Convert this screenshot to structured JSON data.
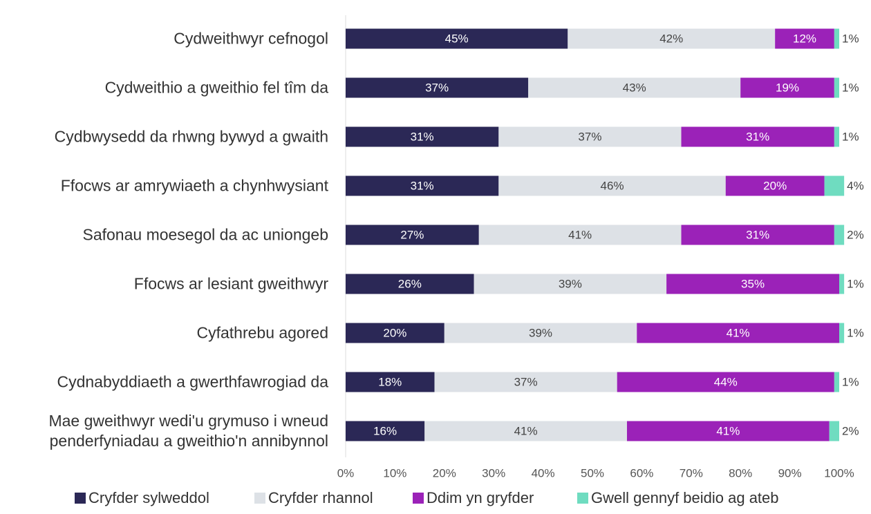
{
  "chart_data": {
    "type": "stacked-bar-horizontal",
    "categories": [
      "Cydweithwyr cefnogol",
      "Cydweithio a gweithio fel tîm da",
      "Cydbwysedd da rhwng bywyd a gwaith",
      "Ffocws ar amrywiaeth a chynhwysiant",
      "Safonau moesegol da ac uniongeb",
      "Ffocws ar lesiant gweithwyr",
      "Cyfathrebu agored",
      "Cydnabyddiaeth a gwerthfawrogiad da",
      "Mae gweithwyr wedi'u grymuso i wneud\npenderfyniadau a gweithio'n annibynnol"
    ],
    "series": [
      {
        "name": "Cryfder sylweddol",
        "color": "#2b2856",
        "values": [
          45,
          37,
          31,
          31,
          27,
          26,
          20,
          18,
          16
        ],
        "value_labels": [
          "45%",
          "37%",
          "31%",
          "31%",
          "27%",
          "26%",
          "20%",
          "18%",
          "16%"
        ]
      },
      {
        "name": "Cryfder rhannol",
        "color": "#dde1e6",
        "values": [
          42,
          43,
          37,
          46,
          41,
          39,
          39,
          37,
          41
        ],
        "value_labels": [
          "42%",
          "43%",
          "37%",
          "46%",
          "41%",
          "39%",
          "39%",
          "37%",
          "41%"
        ]
      },
      {
        "name": "Ddim yn gryfder",
        "color": "#9b22b8",
        "values": [
          12,
          19,
          31,
          20,
          31,
          35,
          41,
          44,
          41
        ],
        "value_labels": [
          "12%",
          "19%",
          "31%",
          "20%",
          "31%",
          "35%",
          "41%",
          "44%",
          "41%"
        ]
      },
      {
        "name": "Gwell gennyf beidio ag ateb",
        "color": "#6fdcc0",
        "values": [
          1,
          1,
          1,
          4,
          2,
          1,
          1,
          1,
          2
        ],
        "value_labels": [
          "1%",
          "1%",
          "1%",
          "4%",
          "2%",
          "1%",
          "1%",
          "1%",
          "2%"
        ]
      }
    ],
    "xlim": [
      0,
      100
    ],
    "xticks": [
      {
        "value": 0,
        "label": "0%"
      },
      {
        "value": 10,
        "label": "10%"
      },
      {
        "value": 20,
        "label": "20%"
      },
      {
        "value": 30,
        "label": "30%"
      },
      {
        "value": 40,
        "label": "40%"
      },
      {
        "value": 50,
        "label": "50%"
      },
      {
        "value": 60,
        "label": "60%"
      },
      {
        "value": 70,
        "label": "70%"
      },
      {
        "value": 80,
        "label": "80%"
      },
      {
        "value": 90,
        "label": "90%"
      },
      {
        "value": 100,
        "label": "100%"
      }
    ],
    "legend": "bottom"
  }
}
